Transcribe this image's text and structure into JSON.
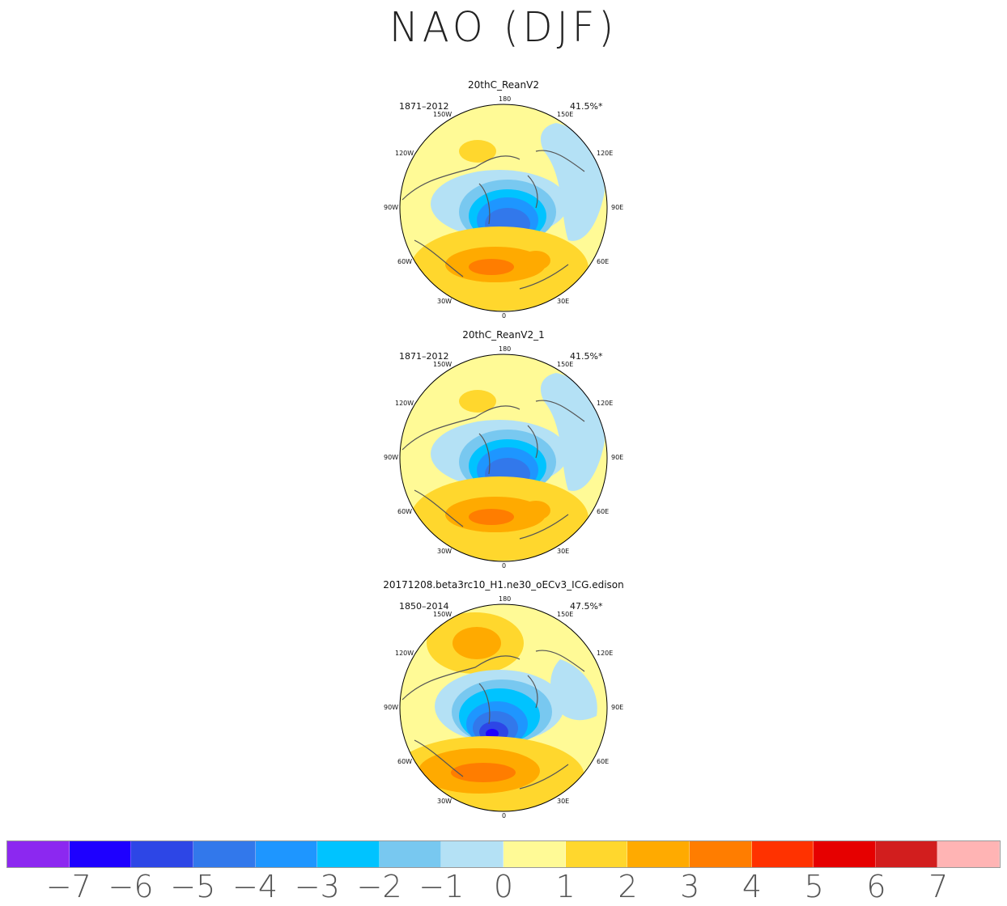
{
  "title": "NAO (DJF)",
  "panels": [
    {
      "title": "20thC_ReanV2",
      "years": "1871–2012",
      "percent": "41.5%*"
    },
    {
      "title": "20thC_ReanV2_1",
      "years": "1871–2012",
      "percent": "41.5%*"
    },
    {
      "title": "20171208.beta3rc10_H1.ne30_oECv3_ICG.edison",
      "years": "1850–2014",
      "percent": "47.5%*"
    }
  ],
  "longitude_labels": {
    "top": "180",
    "bottom": "0",
    "w150": "150W",
    "e150": "150E",
    "w120": "120W",
    "e120": "120E",
    "w90": "90W",
    "e90": "90E",
    "w60": "60W",
    "e60": "60E",
    "w30": "30W",
    "e30": "30E"
  },
  "colorbar": {
    "colors": [
      "#8c28f0",
      "#1e00ff",
      "#2d46e6",
      "#3278eb",
      "#1e96ff",
      "#00c3ff",
      "#78c8f0",
      "#b4e1f5",
      "#fffa96",
      "#ffd72d",
      "#ffaa00",
      "#ff7d00",
      "#ff3200",
      "#e60000",
      "#d21e1e",
      "#ffb4b4"
    ],
    "tick_labels": [
      "−7",
      "−6",
      "−5",
      "−4",
      "−3",
      "−2",
      "−1",
      "0",
      "1",
      "2",
      "3",
      "4",
      "5",
      "6",
      "7"
    ]
  }
}
